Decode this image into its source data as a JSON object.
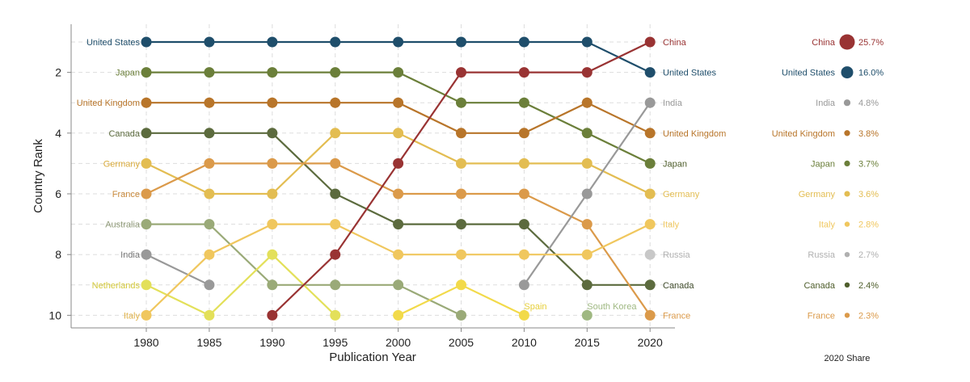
{
  "chart_data": {
    "type": "line",
    "title": "",
    "xlabel": "Publication Year",
    "ylabel": "Country Rank",
    "x": [
      1980,
      1985,
      1990,
      1995,
      2000,
      2005,
      2010,
      2015,
      2020
    ],
    "x_ticks": [
      "1980",
      "1985",
      "1990",
      "1995",
      "2000",
      "2005",
      "2010",
      "2015",
      "2020"
    ],
    "y_ticks": [
      "2",
      "4",
      "6",
      "8",
      "10"
    ],
    "ylim": [
      10.4,
      0.6
    ],
    "y_inverted": true,
    "grid": true,
    "series": [
      {
        "name": "United States",
        "color": "#1f4e6b",
        "values": [
          1,
          1,
          1,
          1,
          1,
          1,
          1,
          1,
          2
        ]
      },
      {
        "name": "Japan",
        "color": "#6b7f3a",
        "values": [
          2,
          2,
          2,
          2,
          2,
          3,
          3,
          4,
          5
        ]
      },
      {
        "name": "United Kingdom",
        "color": "#b8752a",
        "values": [
          3,
          3,
          3,
          3,
          3,
          4,
          4,
          3,
          4
        ]
      },
      {
        "name": "Canada",
        "color": "#5c6b3e",
        "values": [
          4,
          4,
          4,
          6,
          7,
          7,
          7,
          9,
          9
        ]
      },
      {
        "name": "Germany",
        "color": "#e3bd52",
        "values": [
          5,
          6,
          6,
          4,
          4,
          5,
          5,
          5,
          6
        ]
      },
      {
        "name": "France",
        "color": "#db9a4a",
        "values": [
          6,
          5,
          5,
          5,
          6,
          6,
          6,
          7,
          10
        ]
      },
      {
        "name": "Australia",
        "color": "#9aaa78",
        "values": [
          7,
          7,
          9,
          9,
          9,
          10,
          null,
          null,
          null
        ]
      },
      {
        "name": "India",
        "color": "#999999",
        "values": [
          8,
          9,
          null,
          null,
          null,
          null,
          9,
          6,
          3
        ]
      },
      {
        "name": "Netherlands",
        "color": "#e3e05a",
        "values": [
          9,
          10,
          8,
          10,
          null,
          null,
          null,
          null,
          null
        ]
      },
      {
        "name": "Italy",
        "color": "#f0c75e",
        "values": [
          10,
          8,
          7,
          7,
          8,
          8,
          8,
          8,
          7
        ]
      },
      {
        "name": "China",
        "color": "#993333",
        "values": [
          null,
          null,
          10,
          8,
          5,
          2,
          2,
          2,
          1
        ]
      },
      {
        "name": "Spain",
        "color": "#f2da4a",
        "values": [
          null,
          null,
          null,
          null,
          10,
          9,
          10,
          null,
          null
        ]
      },
      {
        "name": "South Korea",
        "color": "#9fb882",
        "values": [
          null,
          null,
          null,
          null,
          null,
          null,
          null,
          10,
          null
        ]
      },
      {
        "name": "Russia",
        "color": "#c8c8c8",
        "values": [
          null,
          null,
          null,
          null,
          null,
          null,
          null,
          null,
          8
        ]
      }
    ],
    "left_labels": [
      {
        "rank": 1,
        "text": "United States",
        "color": "#1f4e6b"
      },
      {
        "rank": 2,
        "text": "Japan",
        "color": "#6b7f3a"
      },
      {
        "rank": 3,
        "text": "United Kingdom",
        "color": "#b8752a"
      },
      {
        "rank": 4,
        "text": "Canada",
        "color": "#5c6b3e"
      },
      {
        "rank": 5,
        "text": "Germany",
        "color": "#d9ab3c"
      },
      {
        "rank": 6,
        "text": "France",
        "color": "#c98a3c"
      },
      {
        "rank": 7,
        "text": "Australia",
        "color": "#8f9a78"
      },
      {
        "rank": 8,
        "text": "India",
        "color": "#777777"
      },
      {
        "rank": 9,
        "text": "Netherlands",
        "color": "#d4c93a"
      },
      {
        "rank": 10,
        "text": "Italy",
        "color": "#e0b24a"
      }
    ],
    "right_labels": [
      {
        "rank": 1,
        "text": "China",
        "color": "#993333"
      },
      {
        "rank": 2,
        "text": "United States",
        "color": "#1f4e6b"
      },
      {
        "rank": 3,
        "text": "India",
        "color": "#999999"
      },
      {
        "rank": 4,
        "text": "United Kingdom",
        "color": "#b8752a"
      },
      {
        "rank": 5,
        "text": "Japan",
        "color": "#4f5e2c"
      },
      {
        "rank": 6,
        "text": "Germany",
        "color": "#e3bd52"
      },
      {
        "rank": 7,
        "text": "Italy",
        "color": "#f0c75e"
      },
      {
        "rank": 8,
        "text": "Russia",
        "color": "#b0b0b0"
      },
      {
        "rank": 9,
        "text": "Canada",
        "color": "#3e4a2a"
      },
      {
        "rank": 10,
        "text": "France",
        "color": "#db9a4a"
      }
    ],
    "annotations": [
      {
        "text": "Spain",
        "x": 2010,
        "rank": 9.7,
        "color": "#e6cf3a"
      },
      {
        "text": "South Korea",
        "x": 2015,
        "rank": 9.7,
        "color": "#9fb882"
      }
    ],
    "share_title": "2020 Share",
    "shares": [
      {
        "country": "China",
        "value": "25.7%",
        "share": 25.7,
        "color": "#993333"
      },
      {
        "country": "United States",
        "value": "16.0%",
        "share": 16.0,
        "color": "#1f4e6b"
      },
      {
        "country": "India",
        "value": "4.8%",
        "share": 4.8,
        "color": "#999999"
      },
      {
        "country": "United Kingdom",
        "value": "3.8%",
        "share": 3.8,
        "color": "#b8752a"
      },
      {
        "country": "Japan",
        "value": "3.7%",
        "share": 3.7,
        "color": "#6b7f3a"
      },
      {
        "country": "Germany",
        "value": "3.6%",
        "share": 3.6,
        "color": "#e3bd52"
      },
      {
        "country": "Italy",
        "value": "2.8%",
        "share": 2.8,
        "color": "#f0c75e"
      },
      {
        "country": "Russia",
        "value": "2.7%",
        "share": 2.7,
        "color": "#b0b0b0"
      },
      {
        "country": "Canada",
        "value": "2.4%",
        "share": 2.4,
        "color": "#4f5e2c"
      },
      {
        "country": "France",
        "value": "2.3%",
        "share": 2.3,
        "color": "#db9a4a"
      }
    ]
  }
}
